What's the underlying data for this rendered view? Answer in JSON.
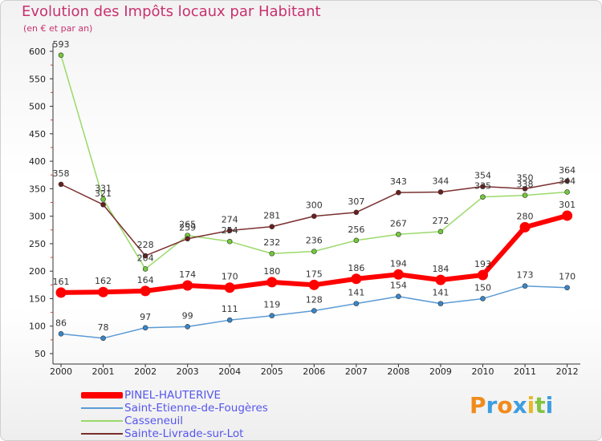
{
  "title": "Evolution des Impôts locaux par Habitant",
  "subtitle": "(en € et par an)",
  "logo": {
    "letters": [
      "P",
      "r",
      "o",
      "x",
      "i",
      "t",
      "i"
    ],
    "colors": [
      "#f08b1c",
      "#3d9ee0",
      "#f08b1c",
      "#3d9ee0",
      "#e8b82b",
      "#84c341",
      "#3d9ee0"
    ]
  },
  "chart_data": {
    "type": "line",
    "title": "Evolution des Impôts locaux par Habitant",
    "ylabel": "(en € et par an)",
    "xlabel": "",
    "ylim": [
      50,
      600
    ],
    "yticks": [
      50,
      100,
      150,
      200,
      250,
      300,
      350,
      400,
      450,
      500,
      550,
      600
    ],
    "grid": false,
    "legend_position": "bottom-left",
    "categories": [
      "2000",
      "2001",
      "2002",
      "2003",
      "2004",
      "2005",
      "2006",
      "2007",
      "2008",
      "2009",
      "2010",
      "2011",
      "2012"
    ],
    "series": [
      {
        "name": "Casseneuil",
        "color": "#9bd96a",
        "marker_color": "#72c93a",
        "values": [
          593,
          331,
          204,
          265,
          254,
          232,
          236,
          256,
          267,
          272,
          335,
          338,
          344
        ]
      },
      {
        "name": "Sainte-Livrade-sur-Lot",
        "color": "#7a2f2f",
        "marker_color": "#6b1f1f",
        "values": [
          358,
          321,
          228,
          259,
          274,
          281,
          300,
          307,
          343,
          344,
          354,
          350,
          364
        ]
      },
      {
        "name": "Saint-Etienne-de-Fougères",
        "color": "#5b9bd5",
        "marker_color": "#3a86c8",
        "values": [
          86,
          78,
          97,
          99,
          111,
          119,
          128,
          141,
          154,
          141,
          150,
          173,
          170
        ]
      },
      {
        "name": "PINEL-HAUTERIVE",
        "color": "#ff0000",
        "marker_color": "#ff0000",
        "values": [
          161,
          162,
          164,
          174,
          170,
          180,
          175,
          186,
          194,
          184,
          193,
          280,
          301
        ]
      }
    ],
    "legend_order": [
      "PINEL-HAUTERIVE",
      "Saint-Etienne-de-Fougères",
      "Casseneuil",
      "Sainte-Livrade-sur-Lot"
    ]
  }
}
